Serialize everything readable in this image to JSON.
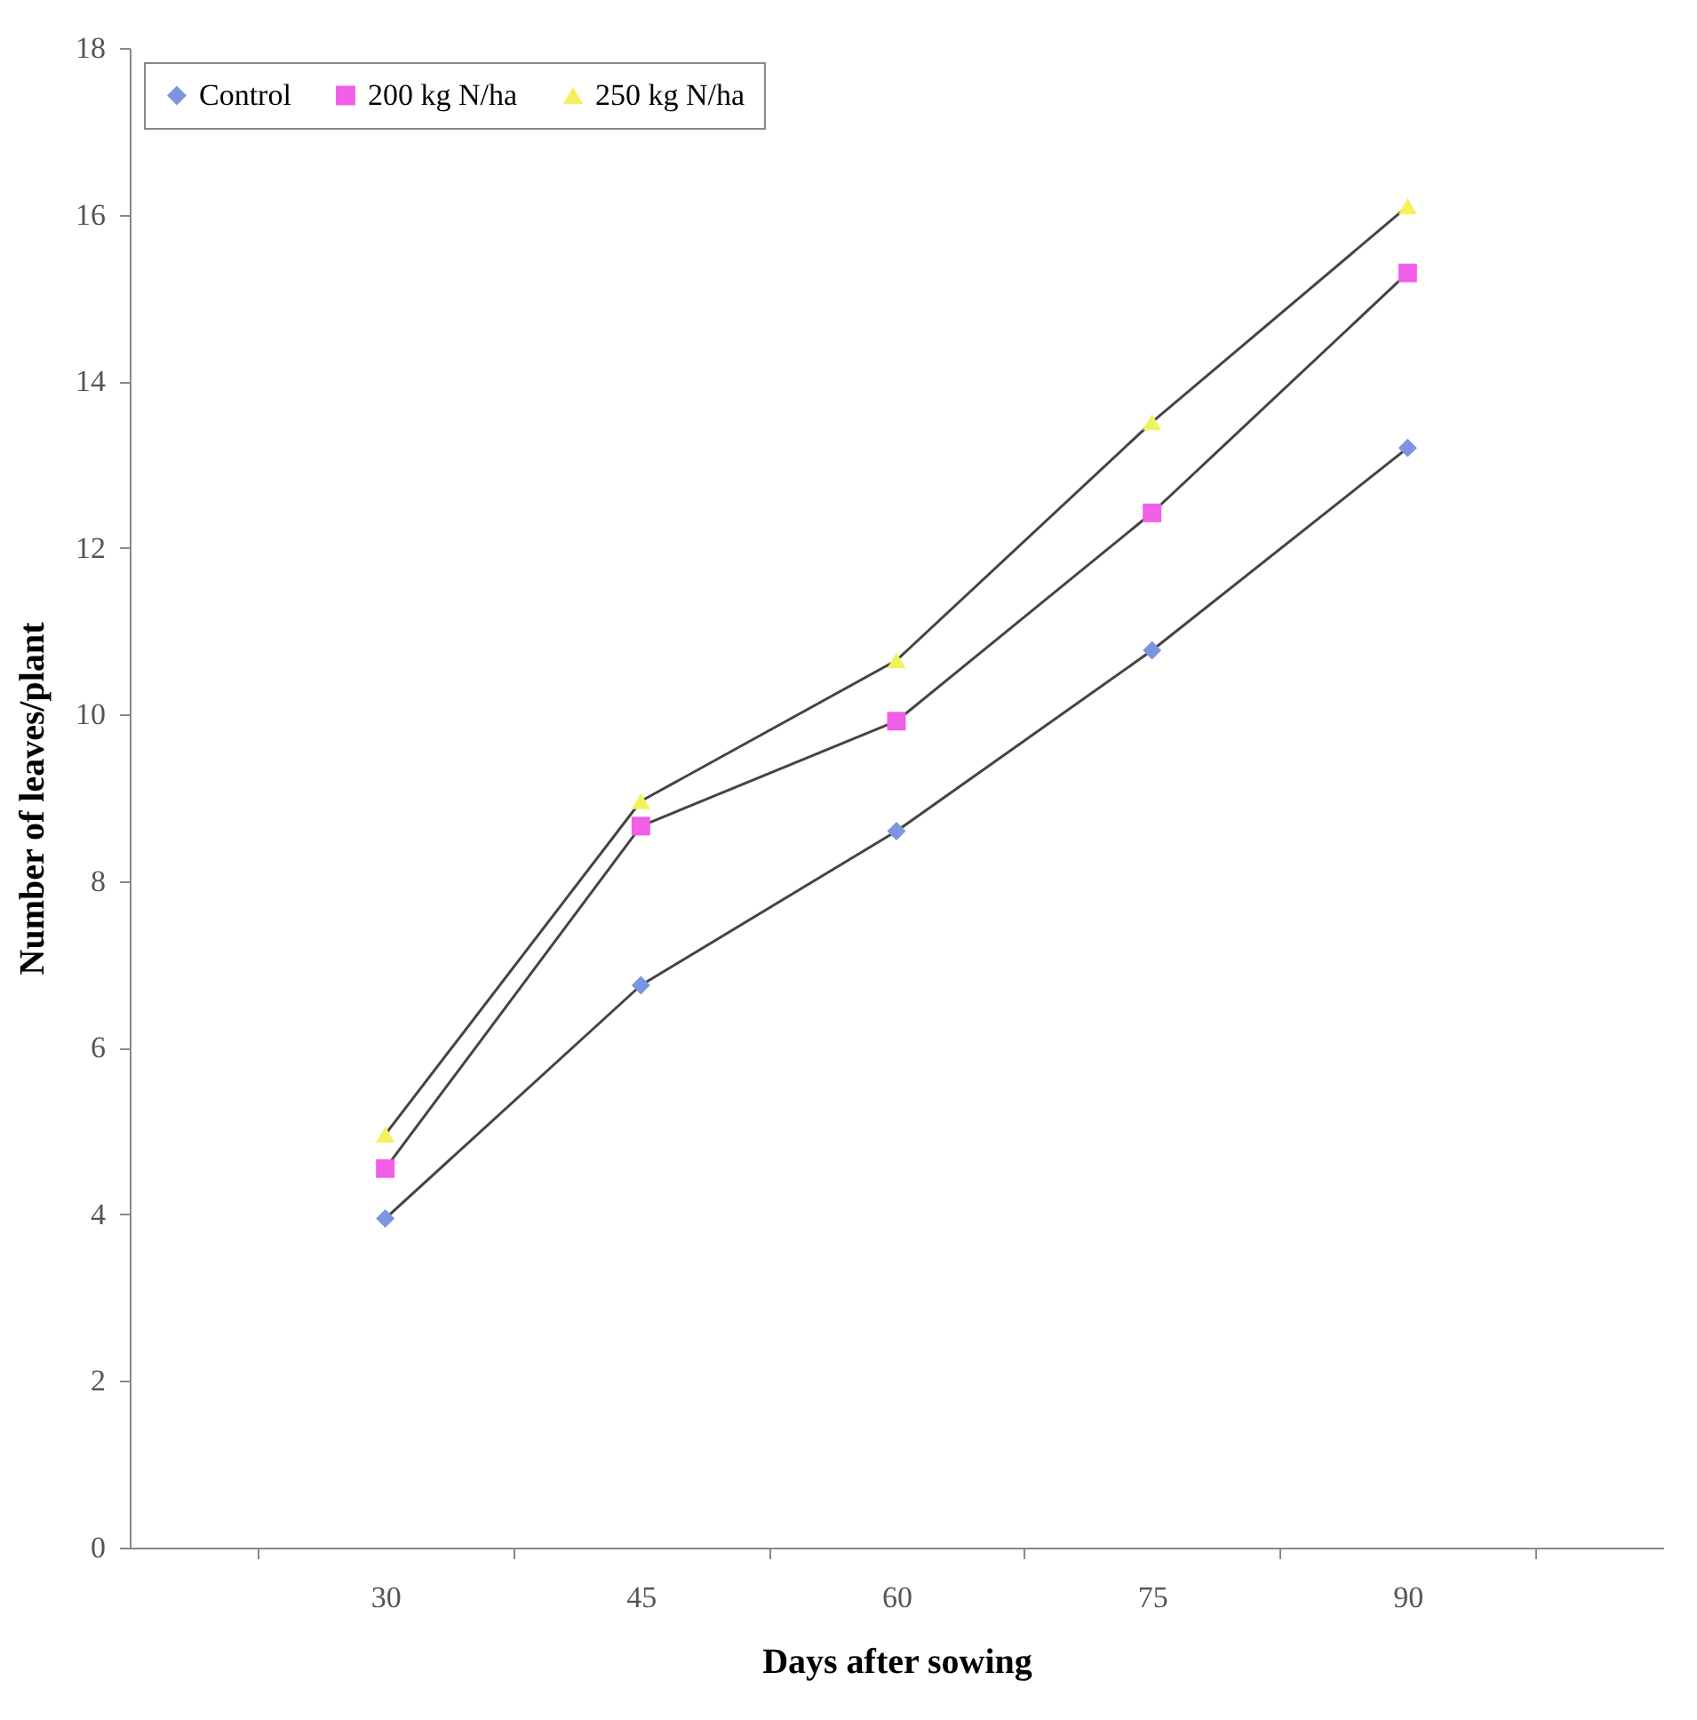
{
  "chart_data": {
    "type": "line",
    "xlabel": "Days after sowing",
    "ylabel": "Number of leaves/plant",
    "categories": [
      "30",
      "45",
      "60",
      "75",
      "90"
    ],
    "series": [
      {
        "name": "Control",
        "color": "#7b96e0",
        "marker": "diamond",
        "values": [
          3.95,
          6.75,
          8.6,
          10.77,
          13.2
        ]
      },
      {
        "name": "200 kg N/ha",
        "color": "#f15ee8",
        "marker": "square",
        "values": [
          4.55,
          8.66,
          9.92,
          12.42,
          15.3
        ]
      },
      {
        "name": "250 kg N/ha",
        "color": "#f4f25c",
        "marker": "triangle",
        "values": [
          4.96,
          8.96,
          10.65,
          13.51,
          16.1
        ]
      }
    ],
    "ylim": [
      0,
      18
    ],
    "yticks": [
      0,
      2,
      4,
      6,
      8,
      10,
      12,
      14,
      16,
      18
    ],
    "grid": false,
    "legend": "top left"
  }
}
